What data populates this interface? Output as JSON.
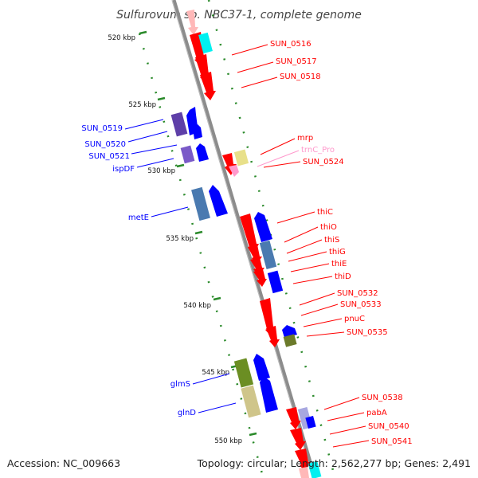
{
  "title": "Sulfurovum sp. NBC37-1, complete genome",
  "accession": "Accession: NC_009663",
  "summary": "Topology: circular; Length: 2,562,277 bp; Genes: 2,491",
  "colors": {
    "forward_gene": "#ff0000",
    "reverse_gene": "#0000ff",
    "rna": "#ff99cc",
    "tick": "#2a8a2a",
    "axis": "#8c8c8c"
  },
  "kbp_ticks": [
    "520 kbp",
    "525 kbp",
    "530 kbp",
    "535 kbp",
    "540 kbp",
    "545 kbp",
    "550 kbp"
  ],
  "right_labels": [
    {
      "text": "SUN_0516",
      "color": "#ff0000"
    },
    {
      "text": "SUN_0517",
      "color": "#ff0000"
    },
    {
      "text": "SUN_0518",
      "color": "#ff0000"
    },
    {
      "text": "mrp",
      "color": "#ff0000"
    },
    {
      "text": "trnC_Pro",
      "color": "#ff99cc"
    },
    {
      "text": "SUN_0524",
      "color": "#ff0000"
    },
    {
      "text": "thiC",
      "color": "#ff0000"
    },
    {
      "text": "thiO",
      "color": "#ff0000"
    },
    {
      "text": "thiS",
      "color": "#ff0000"
    },
    {
      "text": "thiG",
      "color": "#ff0000"
    },
    {
      "text": "thiE",
      "color": "#ff0000"
    },
    {
      "text": "thiD",
      "color": "#ff0000"
    },
    {
      "text": "SUN_0532",
      "color": "#ff0000"
    },
    {
      "text": "SUN_0533",
      "color": "#ff0000"
    },
    {
      "text": "pnuC",
      "color": "#ff0000"
    },
    {
      "text": "SUN_0535",
      "color": "#ff0000"
    },
    {
      "text": "SUN_0538",
      "color": "#ff0000"
    },
    {
      "text": "pabA",
      "color": "#ff0000"
    },
    {
      "text": "SUN_0540",
      "color": "#ff0000"
    },
    {
      "text": "SUN_0541",
      "color": "#ff0000"
    }
  ],
  "left_labels": [
    {
      "text": "SUN_0519",
      "color": "#0000ff"
    },
    {
      "text": "SUN_0520",
      "color": "#0000ff"
    },
    {
      "text": "SUN_0521",
      "color": "#0000ff"
    },
    {
      "text": "ispDF",
      "color": "#0000ff"
    },
    {
      "text": "metE",
      "color": "#0000ff"
    },
    {
      "text": "glmS",
      "color": "#0000ff"
    },
    {
      "text": "glnD",
      "color": "#0000ff"
    }
  ]
}
